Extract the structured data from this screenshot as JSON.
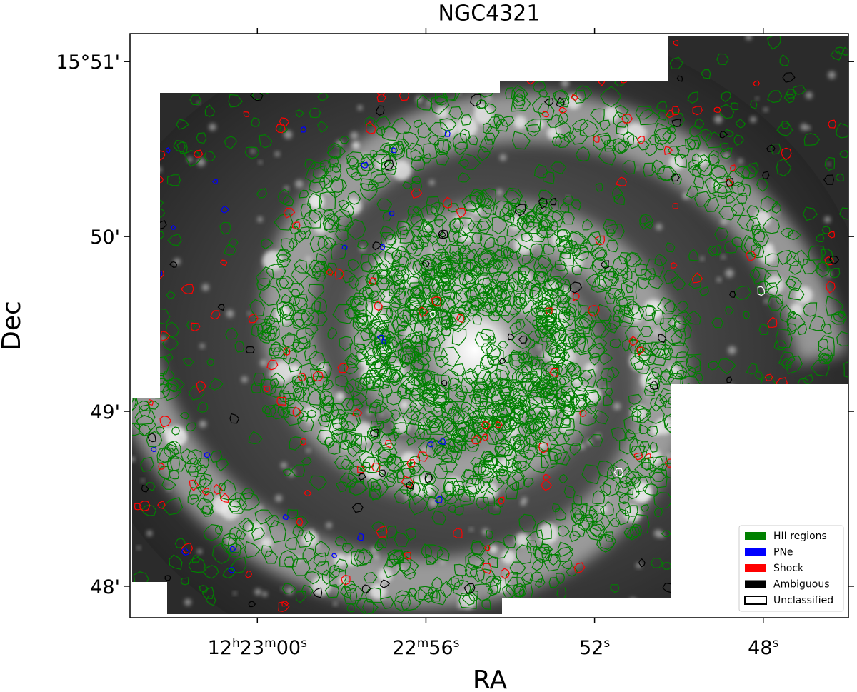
{
  "chart_data": {
    "type": "image",
    "title": "NGC4321",
    "xlabel": "RA",
    "ylabel": "Dec",
    "xlim": [
      63.02,
      45.98
    ],
    "ylim": [
      47.82,
      51.16
    ],
    "xticks": [
      {
        "value": 60,
        "label": "12h23m00s"
      },
      {
        "value": 56,
        "label": "22m56s"
      },
      {
        "value": 52,
        "label": "52s"
      },
      {
        "value": 48,
        "label": "48s"
      }
    ],
    "yticks": [
      {
        "value": 51,
        "label": "15°51'"
      },
      {
        "value": 50,
        "label": "50'"
      },
      {
        "value": 49,
        "label": "49'"
      },
      {
        "value": 48,
        "label": "48'"
      }
    ],
    "legend_loc": "lower right",
    "series": [
      {
        "name": "HII regions",
        "color": "#008000"
      },
      {
        "name": "PNe",
        "color": "#0000ff"
      },
      {
        "name": "Shock",
        "color": "#ff0000"
      },
      {
        "name": "Ambiguous",
        "color": "#000000"
      },
      {
        "name": "Unclassified",
        "color": "#ffffff"
      }
    ]
  }
}
